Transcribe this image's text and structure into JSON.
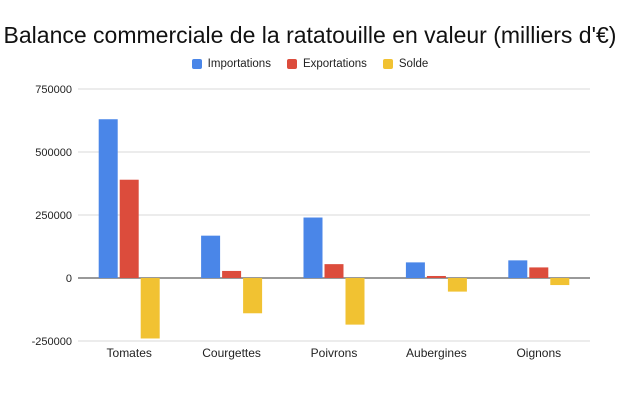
{
  "chart_data": {
    "type": "bar",
    "title": "Balance commerciale de la ratatouille en valeur (milliers d'€)",
    "xlabel": "",
    "ylabel": "",
    "categories": [
      "Tomates",
      "Courgettes",
      "Poivrons",
      "Aubergines",
      "Oignons"
    ],
    "series": [
      {
        "name": "Importations",
        "color": "#4a86e8",
        "values": [
          630000,
          168000,
          240000,
          62000,
          70000
        ]
      },
      {
        "name": "Exportations",
        "color": "#dc4c3c",
        "values": [
          390000,
          28000,
          55000,
          8000,
          42000
        ]
      },
      {
        "name": "Solde",
        "color": "#f1c232",
        "values": [
          -240000,
          -140000,
          -185000,
          -54000,
          -28000
        ]
      }
    ],
    "ylim": [
      -250000,
      750000
    ],
    "yticks": [
      750000,
      500000,
      250000,
      0,
      -250000
    ],
    "ytick_labels": [
      "750000",
      "500000",
      "250000",
      "0",
      "-250000"
    ],
    "grid": true,
    "legend_position": "top-center"
  }
}
